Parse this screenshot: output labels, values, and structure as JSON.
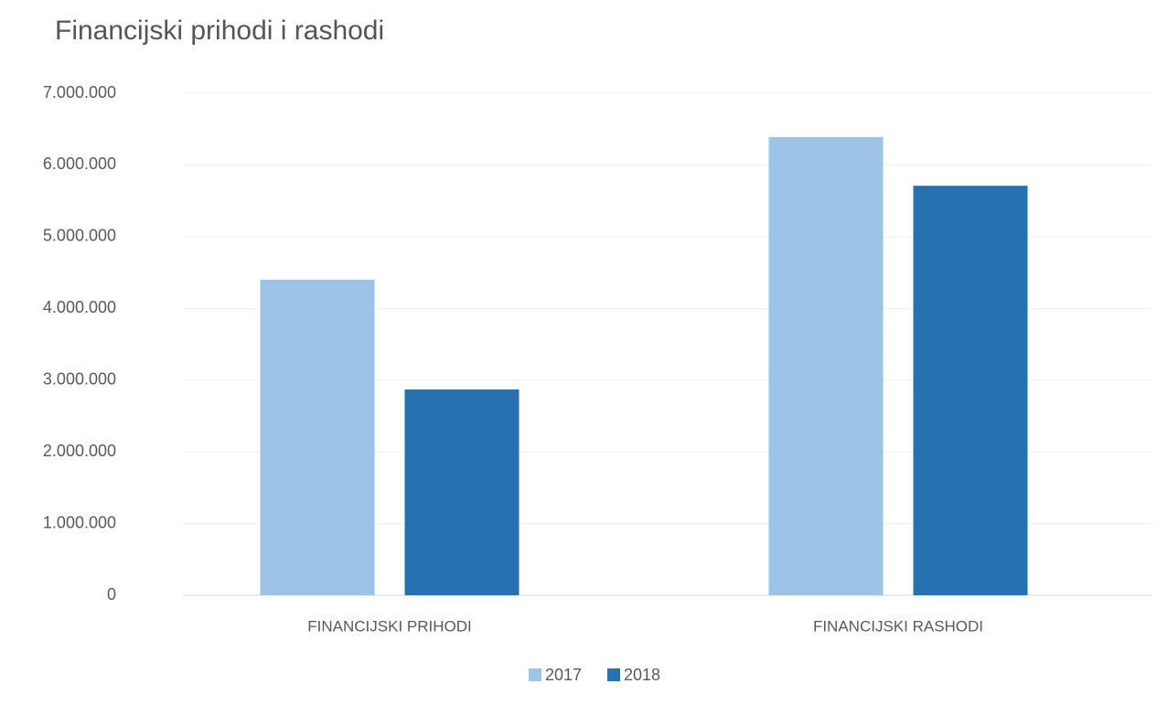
{
  "chart_data": {
    "type": "bar",
    "title": "Financijski prihodi i rashodi",
    "categories": [
      "FINANCIJSKI PRIHODI",
      "FINANCIJSKI RASHODI"
    ],
    "series": [
      {
        "name": "2017",
        "color": "#9dc3e6",
        "values": [
          4400000,
          6390000
        ]
      },
      {
        "name": "2018",
        "color": "#2671b0",
        "values": [
          2870000,
          5710000
        ]
      }
    ],
    "ylim": [
      0,
      7000000
    ],
    "yticks": [
      0,
      {
        "value": 1000000,
        "label": "1.000.000"
      },
      {
        "value": 2000000,
        "label": "2.000.000"
      },
      {
        "value": 3000000,
        "label": "3.000.000"
      },
      {
        "value": 4000000,
        "label": "4.000.000"
      },
      {
        "value": 5000000,
        "label": "5.000.000"
      },
      {
        "value": 6000000,
        "label": "6.000.000"
      },
      {
        "value": 7000000,
        "label": "7.000.000"
      }
    ],
    "grid": true,
    "legend": "bottom"
  }
}
